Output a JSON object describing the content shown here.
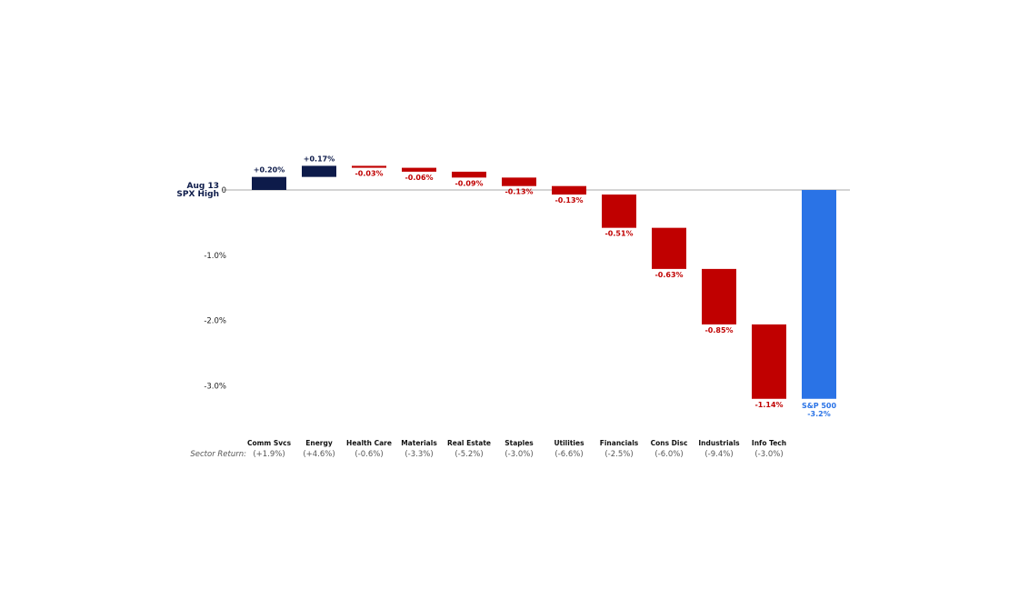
{
  "chart_data": {
    "type": "waterfall",
    "baseline_label": [
      "Aug 13",
      "SPX High"
    ],
    "y_ticks": [
      {
        "value": 0,
        "label": "0"
      },
      {
        "value": -1.0,
        "label": "-1.0%"
      },
      {
        "value": -2.0,
        "label": "-2.0%"
      },
      {
        "value": -3.0,
        "label": "-3.0%"
      }
    ],
    "ylim": [
      -3.5,
      0.5
    ],
    "sector_return_label": "Sector Return:",
    "steps": [
      {
        "category": "Comm Svcs",
        "value": 0.2,
        "label": "+0.20%",
        "sector_return": "(+1.9%)"
      },
      {
        "category": "Energy",
        "value": 0.17,
        "label": "+0.17%",
        "sector_return": "(+4.6%)"
      },
      {
        "category": "Health Care",
        "value": -0.03,
        "label": "-0.03%",
        "sector_return": "(-0.6%)"
      },
      {
        "category": "Materials",
        "value": -0.06,
        "label": "-0.06%",
        "sector_return": "(-3.3%)"
      },
      {
        "category": "Real Estate",
        "value": -0.09,
        "label": "-0.09%",
        "sector_return": "(-5.2%)"
      },
      {
        "category": "Staples",
        "value": -0.13,
        "label": "-0.13%",
        "sector_return": "(-3.0%)"
      },
      {
        "category": "Utilities",
        "value": -0.13,
        "label": "-0.13%",
        "sector_return": "(-6.6%)"
      },
      {
        "category": "Financials",
        "value": -0.51,
        "label": "-0.51%",
        "sector_return": "(-2.5%)"
      },
      {
        "category": "Cons Disc",
        "value": -0.63,
        "label": "-0.63%",
        "sector_return": "(-6.0%)"
      },
      {
        "category": "Industrials",
        "value": -0.85,
        "label": "-0.85%",
        "sector_return": "(-9.4%)"
      },
      {
        "category": "Info Tech",
        "value": -1.14,
        "label": "-1.14%",
        "sector_return": "(-3.0%)"
      }
    ],
    "total": {
      "category": "S&P 500",
      "value": -3.2,
      "label": "-3.2%"
    },
    "colors": {
      "positive": "#0d1b4a",
      "negative": "#c00000",
      "total": "#2a73e6",
      "axis": "#aaaaaa"
    }
  }
}
